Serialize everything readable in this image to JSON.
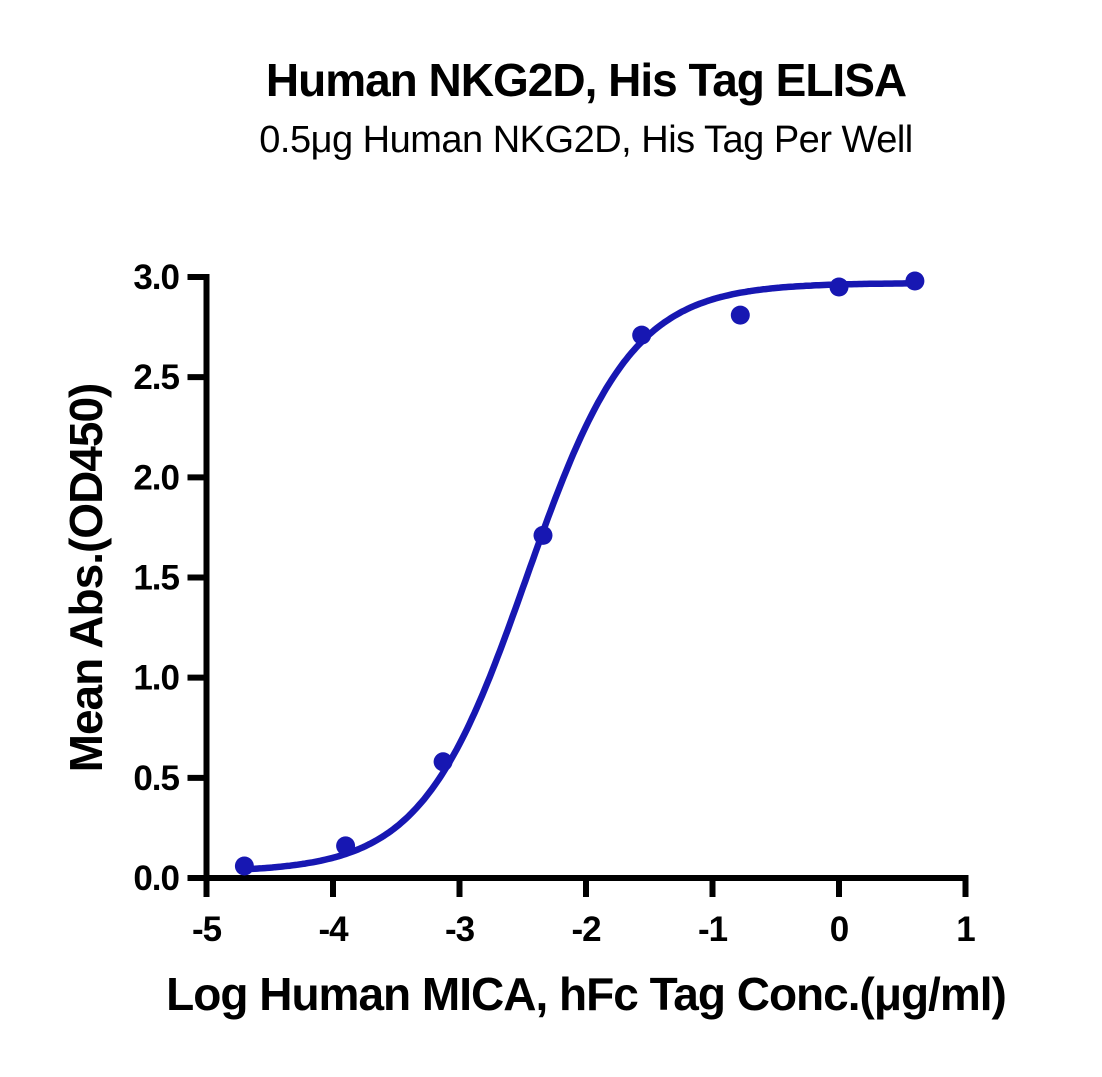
{
  "title": "Human NKG2D, His Tag ELISA",
  "subtitle": "0.5μg Human NKG2D, His Tag Per Well",
  "chart_data": {
    "type": "scatter",
    "title": "Human NKG2D, His Tag ELISA",
    "subtitle": "0.5μg Human NKG2D, His Tag Per Well",
    "xlabel": "Log Human MICA, hFc Tag Conc.(μg/ml)",
    "ylabel": "Mean Abs.(OD450)",
    "xlim": [
      -5,
      1
    ],
    "ylim": [
      0,
      3
    ],
    "x_ticks": [
      -5,
      -4,
      -3,
      -2,
      -1,
      0,
      1
    ],
    "x_tick_labels": [
      "-5",
      "-4",
      "-3",
      "-2",
      "-1",
      "0",
      "1"
    ],
    "y_ticks": [
      0,
      0.5,
      1,
      1.5,
      2,
      2.5,
      3
    ],
    "y_tick_labels": [
      "0.0",
      "0.5",
      "1.0",
      "1.5",
      "2.0",
      "2.5",
      "3.0"
    ],
    "grid": false,
    "legend": "none",
    "axis_color": "#000000",
    "accent_color": "#1717B2",
    "series": [
      {
        "name": "Mean Abs. (OD450) data points",
        "type": "scatter",
        "marker": "circle",
        "color": "#1717B2",
        "points": [
          {
            "x": -4.7,
            "y": 0.06
          },
          {
            "x": -3.9,
            "y": 0.16
          },
          {
            "x": -3.13,
            "y": 0.58
          },
          {
            "x": -2.34,
            "y": 1.71
          },
          {
            "x": -1.56,
            "y": 2.71
          },
          {
            "x": -0.78,
            "y": 2.81
          },
          {
            "x": 0.0,
            "y": 2.95
          },
          {
            "x": 0.6,
            "y": 2.98
          }
        ]
      },
      {
        "name": "4PL fit curve",
        "type": "line",
        "color": "#1717B2",
        "fit": {
          "model": "4PL",
          "bottom": 0.03,
          "top": 2.97,
          "log_ec50": -2.47,
          "hill": 1.05,
          "x_start": -4.7,
          "x_end": 0.6
        }
      }
    ]
  }
}
